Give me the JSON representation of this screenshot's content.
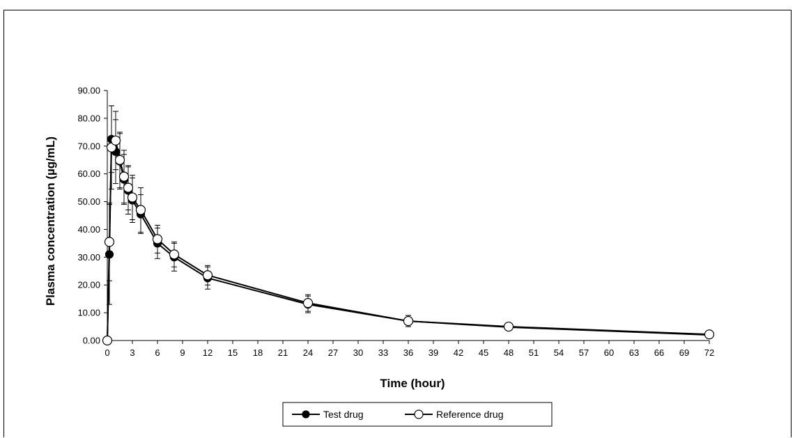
{
  "chart_data": {
    "type": "line",
    "xlabel": "Time (hour)",
    "ylabel": "Plasma concentration (µg/mL)",
    "xlim": [
      0,
      72
    ],
    "ylim": [
      0,
      90
    ],
    "x_ticks": [
      "0",
      "3",
      "6",
      "9",
      "12",
      "15",
      "18",
      "21",
      "24",
      "27",
      "30",
      "33",
      "36",
      "39",
      "42",
      "45",
      "48",
      "51",
      "54",
      "57",
      "60",
      "63",
      "66",
      "69",
      "72"
    ],
    "y_ticks": [
      "0.00",
      "10.00",
      "20.00",
      "30.00",
      "40.00",
      "50.00",
      "60.00",
      "70.00",
      "80.00",
      "90.00"
    ],
    "grid": false,
    "legend_position": "bottom-center",
    "series": [
      {
        "name": "Test drug",
        "marker": "filled-circle",
        "color": "#000000",
        "x": [
          0,
          0.25,
          0.5,
          1,
          1.5,
          2,
          2.5,
          3,
          4,
          6,
          8,
          12,
          24,
          36,
          48,
          72
        ],
        "y": [
          0,
          31.0,
          72.5,
          68.0,
          64.5,
          58.0,
          54.0,
          50.5,
          45.5,
          35.0,
          30.0,
          22.5,
          13.0,
          7.0,
          4.8,
          2.0
        ],
        "error": [
          0,
          18.0,
          12.0,
          11.5,
          10.0,
          9.0,
          8.5,
          8.0,
          7.0,
          5.5,
          5.0,
          4.0,
          3.0,
          2.0,
          0,
          0
        ]
      },
      {
        "name": "Reference drug",
        "marker": "open-circle",
        "color": "#000000",
        "x": [
          0,
          0.25,
          0.5,
          1,
          1.5,
          2,
          2.5,
          3,
          4,
          6,
          8,
          12,
          24,
          36,
          48,
          72
        ],
        "y": [
          0,
          35.5,
          69.5,
          72.0,
          65.0,
          59.0,
          55.0,
          51.5,
          47.0,
          36.5,
          31.0,
          23.5,
          13.5,
          7.0,
          5.0,
          2.2
        ],
        "error": [
          0,
          14.0,
          15.0,
          10.5,
          10.0,
          9.5,
          8.0,
          8.0,
          8.0,
          5.0,
          4.5,
          3.5,
          3.0,
          2.0,
          0,
          0
        ]
      }
    ]
  }
}
